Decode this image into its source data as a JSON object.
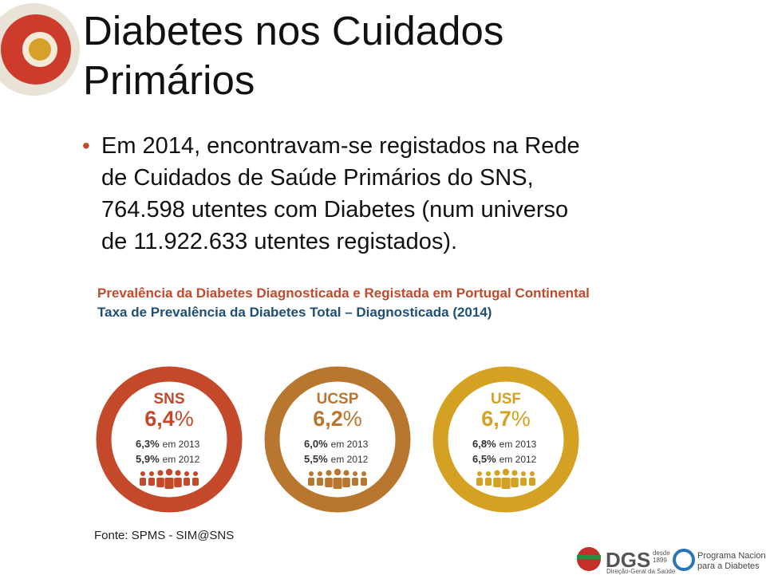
{
  "slide": {
    "title_lines": [
      "Diabetes nos Cuidados",
      "Primários"
    ],
    "bullet_lines": [
      "Em 2014, encontravam-se registados na Rede",
      "de Cuidados de Saúde Primários do SNS,",
      "764.598 utentes com Diabetes (num universo",
      "de 11.922.633 utentes registados)."
    ],
    "infographic": {
      "title": "Prevalência da Diabetes Diagnosticada e Registada em Portugal Continental",
      "subtitle": "Taxa de Prevalência da Diabetes Total – Diagnosticada (2014)",
      "circles": [
        {
          "name": "SNS",
          "color": "#c3492a",
          "value": "6,4",
          "unit": "%",
          "history": [
            {
              "value": "6,3%",
              "label": "em 2013"
            },
            {
              "value": "5,9%",
              "label": "em 2012"
            }
          ]
        },
        {
          "name": "UCSP",
          "color": "#b8762f",
          "value": "6,2",
          "unit": "%",
          "history": [
            {
              "value": "6,0%",
              "label": "em 2013"
            },
            {
              "value": "5,5%",
              "label": "em 2012"
            }
          ]
        },
        {
          "name": "USF",
          "color": "#d4a122",
          "value": "6,7",
          "unit": "%",
          "history": [
            {
              "value": "6,8%",
              "label": "em 2013"
            },
            {
              "value": "6,5%",
              "label": "em 2012"
            }
          ]
        }
      ]
    },
    "source": "Fonte: SPMS - SIM@SNS",
    "logos": {
      "dgs": "DGS",
      "dgs_since": [
        "desde",
        "1899"
      ],
      "dgs_name": "Direção-Geral da Saúde",
      "pnd": [
        "Programa Nacional",
        "para a Diabetes"
      ]
    }
  }
}
